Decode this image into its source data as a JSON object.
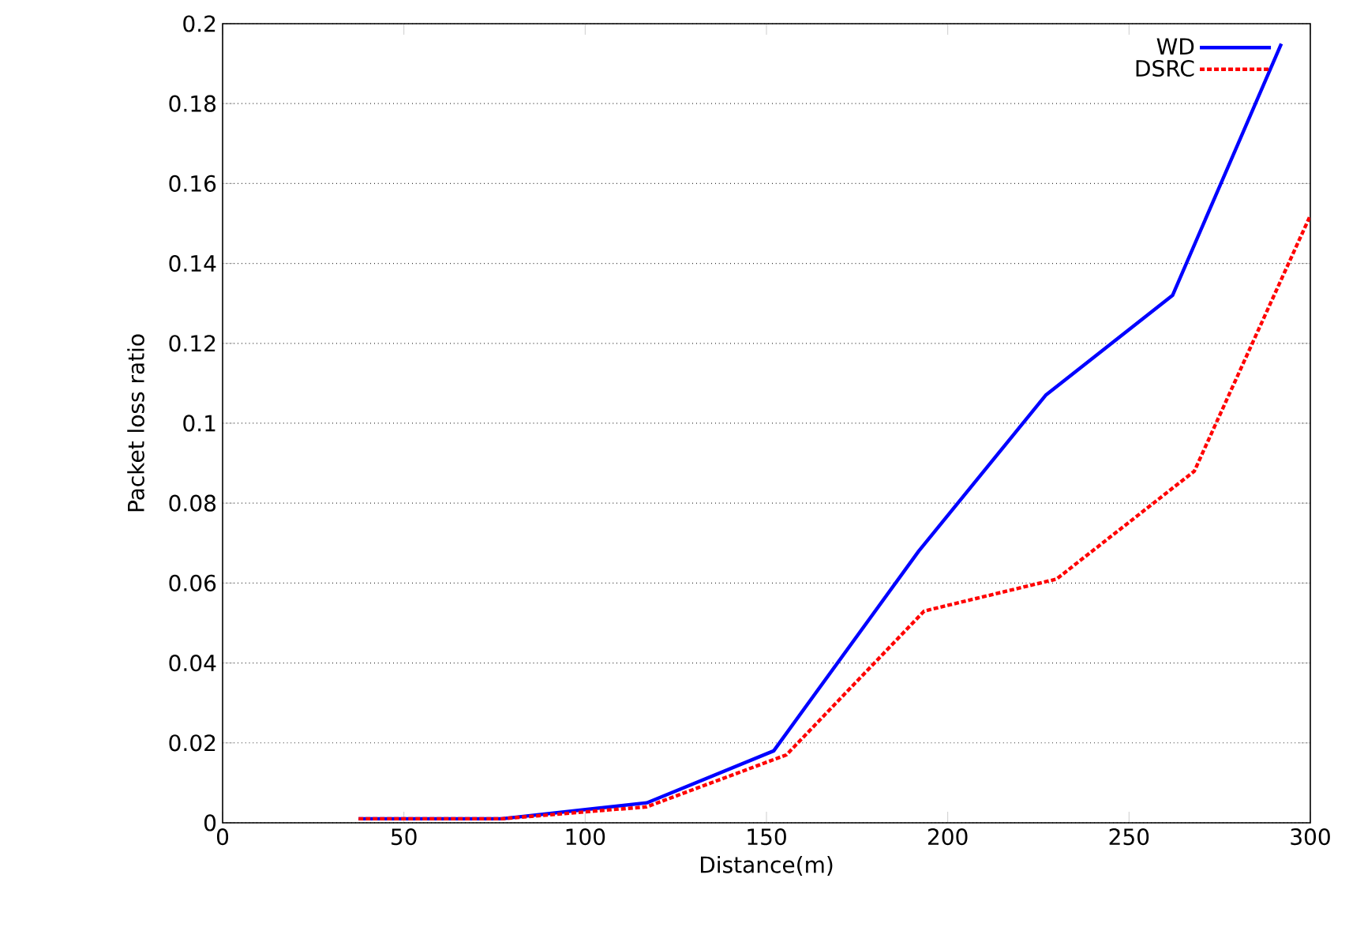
{
  "chart_data": {
    "type": "line",
    "xlabel": "Distance(m)",
    "ylabel": "Packet loss ratio",
    "xlim": [
      0,
      300
    ],
    "xticks": [
      0,
      50,
      100,
      150,
      200,
      250,
      300
    ],
    "ylim": [
      0,
      0.2
    ],
    "yticks": [
      0,
      0.02,
      0.04,
      0.06,
      0.08,
      0.1,
      0.12,
      0.14,
      0.16,
      0.18,
      0.2
    ],
    "grid": "y",
    "legend": "top right",
    "marker": "none",
    "series": [
      {
        "name": "WD",
        "color": "#0000ff",
        "line_style": "solid",
        "x": [
          37.5,
          77,
          117,
          152,
          192,
          227,
          262,
          292
        ],
        "values": [
          0.001,
          0.001,
          0.005,
          0.018,
          0.068,
          0.107,
          0.132,
          0.195
        ]
      },
      {
        "name": "DSRC",
        "color": "#ff0000",
        "line_style": "dashed",
        "x": [
          37.5,
          77,
          117,
          155.5,
          193.5,
          230,
          268,
          300
        ],
        "values": [
          0.001,
          0.001,
          0.004,
          0.017,
          0.053,
          0.061,
          0.088,
          0.152
        ]
      }
    ]
  }
}
